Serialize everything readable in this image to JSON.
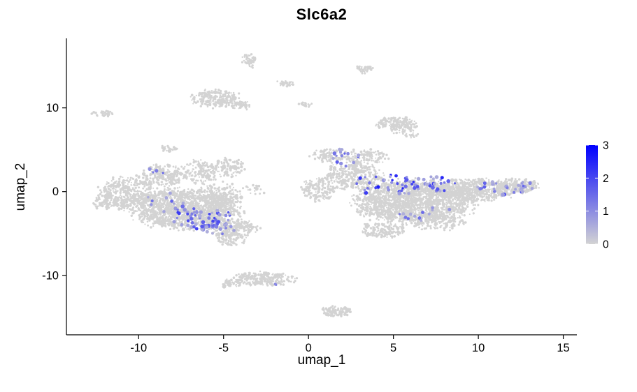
{
  "title": "Slc6a2",
  "x_axis": {
    "label": "umap_1",
    "tick_labels": [
      "-10",
      "-5",
      "0",
      "5",
      "10",
      "15"
    ],
    "tick_values": [
      -10,
      -5,
      0,
      5,
      10,
      15
    ]
  },
  "y_axis": {
    "label": "umap_2",
    "tick_labels": [
      "-10",
      "0",
      "10"
    ],
    "tick_values": [
      -10,
      0,
      10
    ]
  },
  "colorbar": {
    "tick_labels": [
      "0",
      "1",
      "2",
      "3"
    ],
    "tick_values": [
      0,
      1,
      2,
      3
    ],
    "low_color": "#D3D3D3",
    "high_color": "#0000FF",
    "domain": [
      0,
      3
    ]
  },
  "colors": {
    "background": "#FFFFFF",
    "axis": "#000000",
    "text": "#000000",
    "base_point": "#D3D3D3"
  },
  "chart_data": {
    "type": "scatter",
    "title": "Slc6a2",
    "xlabel": "umap_1",
    "ylabel": "umap_2",
    "xlim": [
      -14.25,
      15.8
    ],
    "ylim": [
      -17.1,
      18.3
    ],
    "x_ticks": [
      -10,
      -5,
      0,
      5,
      10,
      15
    ],
    "y_ticks": [
      -10,
      0,
      10
    ],
    "grid": false,
    "legend_position": "right",
    "color_scale": {
      "low": "#D3D3D3",
      "high": "#0000FF",
      "domain": [
        0,
        3
      ],
      "breaks": [
        0,
        1,
        2,
        3
      ]
    },
    "seed": 20240542,
    "background_clusters": [
      {
        "name": "left-body-core",
        "cx": -7.3,
        "cy": -2.0,
        "rx": 3.1,
        "ry": 2.3,
        "n": 1600
      },
      {
        "name": "left-west-wing",
        "cx": -10.6,
        "cy": -0.2,
        "rx": 1.7,
        "ry": 2.0,
        "n": 400
      },
      {
        "name": "left-west-tip",
        "cx": -11.9,
        "cy": -1.2,
        "rx": 0.8,
        "ry": 0.9,
        "n": 90
      },
      {
        "name": "left-north-ear-1",
        "cx": -8.6,
        "cy": 1.9,
        "rx": 1.2,
        "ry": 1.3,
        "n": 190
      },
      {
        "name": "left-north-ear-2",
        "cx": -6.4,
        "cy": 2.3,
        "rx": 1.0,
        "ry": 1.4,
        "n": 160
      },
      {
        "name": "left-north-ear-3",
        "cx": -4.7,
        "cy": 2.9,
        "rx": 0.9,
        "ry": 1.1,
        "n": 110
      },
      {
        "name": "left-south-lobe",
        "cx": -4.4,
        "cy": -4.3,
        "rx": 1.4,
        "ry": 1.0,
        "n": 220
      },
      {
        "name": "left-east-edge",
        "cx": -5.3,
        "cy": -0.5,
        "rx": 1.2,
        "ry": 1.5,
        "n": 180
      },
      {
        "name": "left-south-tail",
        "cx": -4.6,
        "cy": -5.6,
        "rx": 0.9,
        "ry": 0.8,
        "n": 90
      },
      {
        "name": "left-north-spur",
        "cx": -8.2,
        "cy": 5.2,
        "rx": 0.5,
        "ry": 0.4,
        "n": 22
      },
      {
        "name": "right-body-core",
        "cx": 6.2,
        "cy": -1.2,
        "rx": 3.4,
        "ry": 2.4,
        "n": 1750
      },
      {
        "name": "right-east-arm",
        "cx": 9.8,
        "cy": 0.2,
        "rx": 2.2,
        "ry": 1.3,
        "n": 520
      },
      {
        "name": "right-east-tip",
        "cx": 12.4,
        "cy": 0.7,
        "rx": 1.1,
        "ry": 0.9,
        "n": 200
      },
      {
        "name": "right-north-lobe",
        "cx": 2.7,
        "cy": 1.8,
        "rx": 1.6,
        "ry": 1.6,
        "n": 330
      },
      {
        "name": "right-north-spur-1",
        "cx": 1.2,
        "cy": 4.3,
        "rx": 1.0,
        "ry": 0.8,
        "n": 100
      },
      {
        "name": "right-north-spur-2",
        "cx": 3.4,
        "cy": 4.1,
        "rx": 1.2,
        "ry": 0.9,
        "n": 120
      },
      {
        "name": "right-west-edge",
        "cx": 0.6,
        "cy": 0.3,
        "rx": 0.9,
        "ry": 1.4,
        "n": 150
      },
      {
        "name": "right-south-lobe-1",
        "cx": 4.4,
        "cy": -4.6,
        "rx": 1.3,
        "ry": 0.9,
        "n": 150
      },
      {
        "name": "right-south-lobe-2",
        "cx": 7.5,
        "cy": -3.6,
        "rx": 1.6,
        "ry": 1.0,
        "n": 160
      },
      {
        "name": "island-top-mid",
        "cx": -5.5,
        "cy": 11.1,
        "rx": 1.4,
        "ry": 1.0,
        "n": 220
      },
      {
        "name": "island-top-mid-east",
        "cx": -3.9,
        "cy": 10.3,
        "rx": 0.6,
        "ry": 0.5,
        "n": 50
      },
      {
        "name": "island-upper-right",
        "cx": 5.2,
        "cy": 8.0,
        "rx": 1.1,
        "ry": 0.95,
        "n": 180
      },
      {
        "name": "island-upper-right-tail",
        "cx": 6.0,
        "cy": 6.8,
        "rx": 0.45,
        "ry": 0.4,
        "n": 16
      },
      {
        "name": "island-top-small-1",
        "cx": -3.5,
        "cy": 15.6,
        "rx": 0.45,
        "ry": 0.8,
        "n": 55
      },
      {
        "name": "island-top-small-2",
        "cx": 3.3,
        "cy": 14.6,
        "rx": 0.5,
        "ry": 0.5,
        "n": 40
      },
      {
        "name": "island-top-tiny-1",
        "cx": -1.4,
        "cy": 12.9,
        "rx": 0.55,
        "ry": 0.35,
        "n": 30
      },
      {
        "name": "island-top-tiny-2",
        "cx": -0.2,
        "cy": 10.4,
        "rx": 0.45,
        "ry": 0.3,
        "n": 20
      },
      {
        "name": "island-far-left",
        "cx": -12.1,
        "cy": 9.3,
        "rx": 0.7,
        "ry": 0.35,
        "n": 35
      },
      {
        "name": "island-bottom-dash",
        "cx": -2.7,
        "cy": -10.4,
        "rx": 1.9,
        "ry": 0.75,
        "n": 230
      },
      {
        "name": "island-bottom-dash-tip",
        "cx": -4.5,
        "cy": -11.0,
        "rx": 0.6,
        "ry": 0.4,
        "n": 45
      },
      {
        "name": "island-bottom-small",
        "cx": 1.7,
        "cy": -14.3,
        "rx": 0.95,
        "ry": 0.6,
        "n": 90
      },
      {
        "name": "inter-cluster-strays",
        "cx": -3.2,
        "cy": 0.3,
        "rx": 0.6,
        "ry": 0.7,
        "n": 18
      }
    ],
    "expressed_clusters": [
      {
        "name": "left-lower-expr",
        "cx": -6.2,
        "cy": -3.2,
        "rx": 1.8,
        "ry": 1.3,
        "n": 55,
        "vmin": 0.5,
        "vmax": 2.3
      },
      {
        "name": "left-lower-expr-2",
        "cx": -5.2,
        "cy": -4.4,
        "rx": 1.2,
        "ry": 0.7,
        "n": 20,
        "vmin": 0.5,
        "vmax": 1.8
      },
      {
        "name": "left-mid-expr",
        "cx": -8.4,
        "cy": -1.3,
        "rx": 1.3,
        "ry": 1.3,
        "n": 12,
        "vmin": 0.5,
        "vmax": 1.6
      },
      {
        "name": "left-top-expr",
        "cx": -8.9,
        "cy": 2.4,
        "rx": 0.7,
        "ry": 0.5,
        "n": 4,
        "vmin": 0.8,
        "vmax": 2.0
      },
      {
        "name": "right-band-expr",
        "cx": 5.5,
        "cy": 0.8,
        "rx": 3.2,
        "ry": 1.3,
        "n": 65,
        "vmin": 0.5,
        "vmax": 2.6
      },
      {
        "name": "right-top-expr",
        "cx": 2.1,
        "cy": 3.9,
        "rx": 1.0,
        "ry": 0.9,
        "n": 10,
        "vmin": 0.5,
        "vmax": 1.8
      },
      {
        "name": "right-east-expr",
        "cx": 11.3,
        "cy": 0.4,
        "rx": 1.6,
        "ry": 0.8,
        "n": 22,
        "vmin": 0.5,
        "vmax": 2.0
      },
      {
        "name": "right-east-tip-expr",
        "cx": 12.8,
        "cy": 0.7,
        "rx": 0.5,
        "ry": 0.5,
        "n": 10,
        "vmin": 0.6,
        "vmax": 1.8
      },
      {
        "name": "right-south-expr",
        "cx": 6.6,
        "cy": -2.8,
        "rx": 2.3,
        "ry": 1.1,
        "n": 14,
        "vmin": 0.5,
        "vmax": 1.6
      },
      {
        "name": "bottom-dash-expr",
        "cx": -1.9,
        "cy": -11.0,
        "rx": 0.25,
        "ry": 0.2,
        "n": 2,
        "vmin": 0.8,
        "vmax": 1.6
      },
      {
        "name": "right-upper-expr",
        "cx": 1.9,
        "cy": 4.7,
        "rx": 0.5,
        "ry": 0.4,
        "n": 5,
        "vmin": 0.6,
        "vmax": 1.8
      }
    ]
  }
}
